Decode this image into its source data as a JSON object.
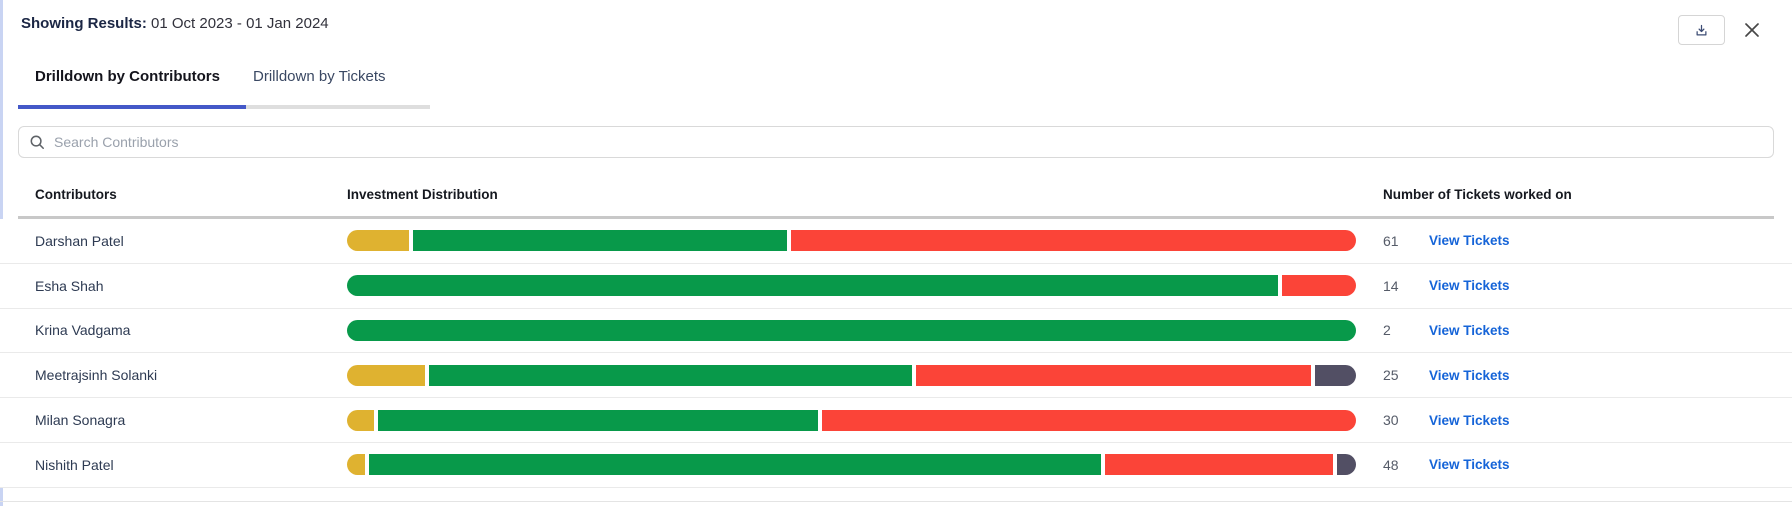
{
  "header": {
    "showing_label": "Showing Results:",
    "date_range": "01 Oct 2023 - 01 Jan 2024"
  },
  "icons": {
    "download": "download-tray-arrow",
    "close": "x-cross",
    "search": "magnifier"
  },
  "tabs": [
    {
      "label": "Drilldown by Contributors",
      "active": true
    },
    {
      "label": "Drilldown by Tickets",
      "active": false
    }
  ],
  "search": {
    "placeholder": "Search Contributors",
    "value": ""
  },
  "table": {
    "columns": [
      "Contributors",
      "Investment Distribution",
      "Number of Tickets worked on"
    ],
    "view_tickets_label": "View Tickets",
    "rows": [
      {
        "name": "Darshan Patel",
        "tickets": 61,
        "segments": [
          {
            "color": "yellow",
            "pct": 6.1
          },
          {
            "color": "green",
            "pct": 37.1
          },
          {
            "color": "red",
            "pct": 56.0
          }
        ]
      },
      {
        "name": "Esha Shah",
        "tickets": 14,
        "segments": [
          {
            "color": "green",
            "pct": 92.3
          },
          {
            "color": "red",
            "pct": 7.3
          }
        ]
      },
      {
        "name": "Krina Vadgama",
        "tickets": 2,
        "segments": [
          {
            "color": "green",
            "pct": 100
          }
        ]
      },
      {
        "name": "Meetrajsinh Solanki",
        "tickets": 25,
        "segments": [
          {
            "color": "yellow",
            "pct": 7.7
          },
          {
            "color": "green",
            "pct": 47.7
          },
          {
            "color": "red",
            "pct": 39.0
          },
          {
            "color": "dark",
            "pct": 4.1
          }
        ]
      },
      {
        "name": "Milan Sonagra",
        "tickets": 30,
        "segments": [
          {
            "color": "yellow",
            "pct": 2.7
          },
          {
            "color": "green",
            "pct": 43.4
          },
          {
            "color": "red",
            "pct": 52.8
          }
        ]
      },
      {
        "name": "Nishith Patel",
        "tickets": 48,
        "segments": [
          {
            "color": "yellow",
            "pct": 1.8
          },
          {
            "color": "green",
            "pct": 72.5
          },
          {
            "color": "red",
            "pct": 22.6
          },
          {
            "color": "dark",
            "pct": 1.9
          }
        ]
      }
    ]
  },
  "colors": {
    "yellow": "#DFB230",
    "green": "#08994A",
    "red": "#FB4438",
    "dark": "#524F64",
    "link_blue": "#1564D8",
    "tab_underline": "#4458C8",
    "left_accent": "#C9D4F3"
  }
}
